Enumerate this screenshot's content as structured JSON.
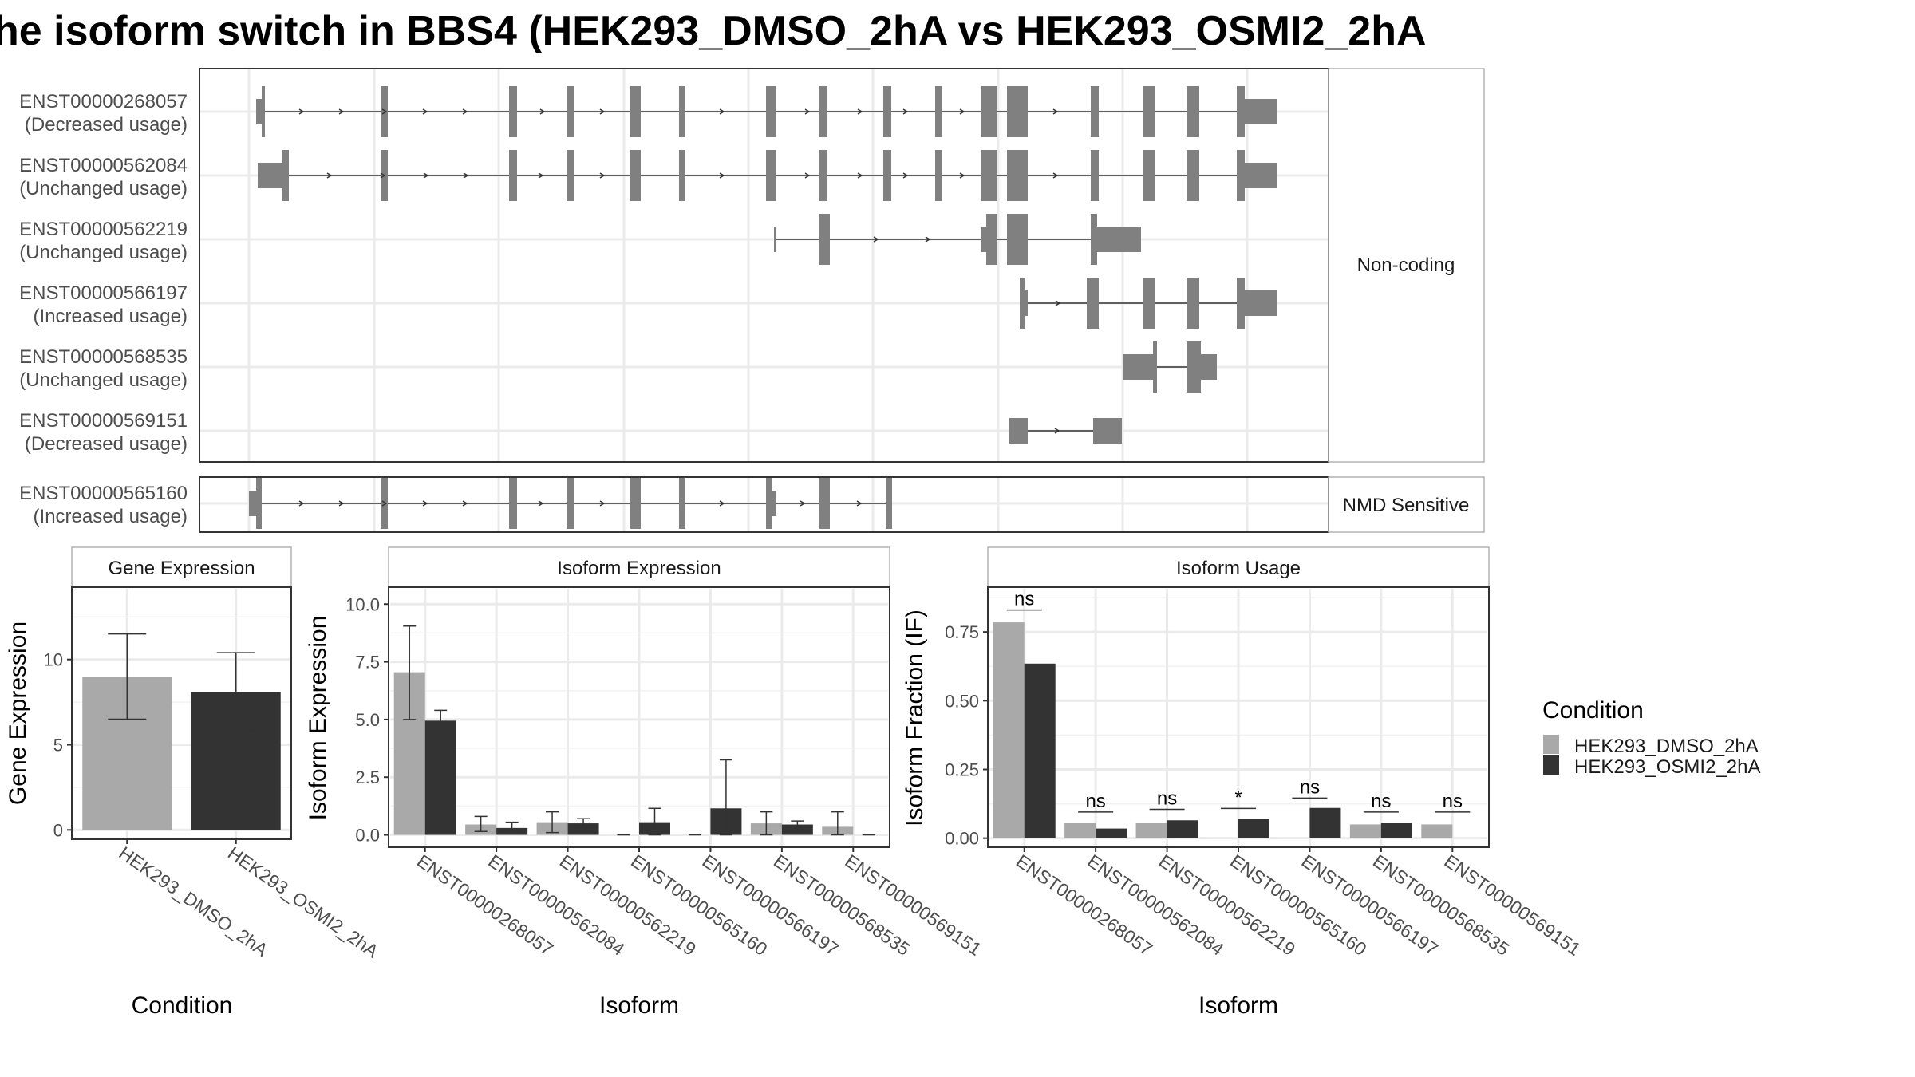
{
  "figure": {
    "title": "he isoform switch in BBS4 (HEK293_DMSO_2hA vs HEK293_OSMI2_2hA",
    "colors": {
      "dmso": "#a9a9a9",
      "osmi": "#333333",
      "transcript": "#808080",
      "grid": "#ebebeb",
      "frame": "#333333",
      "strip_bg": "#ffffff"
    }
  },
  "chart_data": [
    {
      "type": "other",
      "name": "transcript-structure",
      "groups": [
        {
          "label": "Non-coding",
          "transcripts": [
            {
              "id": "ENST00000268057",
              "usage": "(Decreased usage)"
            },
            {
              "id": "ENST00000562084",
              "usage": "(Unchanged usage)"
            },
            {
              "id": "ENST00000562219",
              "usage": "(Unchanged usage)"
            },
            {
              "id": "ENST00000566197",
              "usage": "(Increased usage)"
            },
            {
              "id": "ENST00000568535",
              "usage": "(Unchanged usage)"
            },
            {
              "id": "ENST00000569151",
              "usage": "(Decreased usage)"
            }
          ]
        },
        {
          "label": "NMD Sensitive",
          "transcripts": [
            {
              "id": "ENST00000565160",
              "usage": "(Increased usage)"
            }
          ]
        }
      ]
    },
    {
      "type": "bar",
      "strip": "Gene Expression",
      "xlabel": "Condition",
      "ylabel": "Gene Expression",
      "ylim": [
        -0.5,
        14.2
      ],
      "yticks": [
        0,
        5,
        10
      ],
      "categories": [
        "HEK293_DMSO_2hA",
        "HEK293_OSMI2_2hA"
      ],
      "values": [
        9.0,
        8.1
      ],
      "err_low": [
        6.5,
        5.8
      ],
      "err_high": [
        11.5,
        10.4
      ],
      "grid": true
    },
    {
      "type": "bar",
      "strip": "Isoform Expression",
      "xlabel": "Isoform",
      "ylabel": "Isoform Expression",
      "ylim": [
        -0.5,
        10.7
      ],
      "yticks": [
        0.0,
        2.5,
        5.0,
        7.5,
        10.0
      ],
      "ytick_labels": [
        "0.0",
        "2.5",
        "5.0",
        "7.5",
        "10.0"
      ],
      "categories": [
        "ENST00000268057",
        "ENST00000562084",
        "ENST00000562219",
        "ENST00000565160",
        "ENST00000566197",
        "ENST00000568535",
        "ENST00000569151"
      ],
      "series": [
        {
          "name": "HEK293_DMSO_2hA",
          "values": [
            7.05,
            0.45,
            0.55,
            0.0,
            0.0,
            0.5,
            0.35
          ],
          "err_low": [
            5.0,
            0.15,
            0.1,
            0.0,
            0.0,
            0.0,
            0.0
          ],
          "err_high": [
            9.05,
            0.8,
            1.0,
            0.0,
            0.0,
            1.0,
            1.0
          ]
        },
        {
          "name": "HEK293_OSMI2_2hA",
          "values": [
            4.95,
            0.3,
            0.5,
            0.55,
            1.15,
            0.45,
            0.0
          ],
          "err_low": [
            4.5,
            0.05,
            0.3,
            0.0,
            0.0,
            0.3,
            0.0
          ],
          "err_high": [
            5.4,
            0.55,
            0.7,
            1.15,
            3.25,
            0.6,
            0.0
          ]
        }
      ],
      "grid": true
    },
    {
      "type": "bar",
      "strip": "Isoform Usage",
      "xlabel": "Isoform",
      "ylabel": "Isoform Fraction (IF)",
      "ylim": [
        -0.03,
        0.91
      ],
      "yticks": [
        0.0,
        0.25,
        0.5,
        0.75
      ],
      "ytick_labels": [
        "0.00",
        "0.25",
        "0.50",
        "0.75"
      ],
      "categories": [
        "ENST00000268057",
        "ENST00000562084",
        "ENST00000562219",
        "ENST00000565160",
        "ENST00000566197",
        "ENST00000568535",
        "ENST00000569151"
      ],
      "series": [
        {
          "name": "HEK293_DMSO_2hA",
          "values": [
            0.785,
            0.055,
            0.055,
            0.0,
            0.0,
            0.05,
            0.05
          ]
        },
        {
          "name": "HEK293_OSMI2_2hA",
          "values": [
            0.635,
            0.035,
            0.065,
            0.07,
            0.11,
            0.055,
            0.0
          ]
        }
      ],
      "annotations": [
        "ns",
        "ns",
        "ns",
        "*",
        "ns",
        "ns",
        "ns"
      ],
      "annotation_y": [
        0.83,
        0.095,
        0.105,
        0.108,
        0.146,
        0.095,
        0.095
      ],
      "grid": true
    }
  ],
  "legend": {
    "title": "Condition",
    "items": [
      "HEK293_DMSO_2hA",
      "HEK293_OSMI2_2hA"
    ]
  }
}
